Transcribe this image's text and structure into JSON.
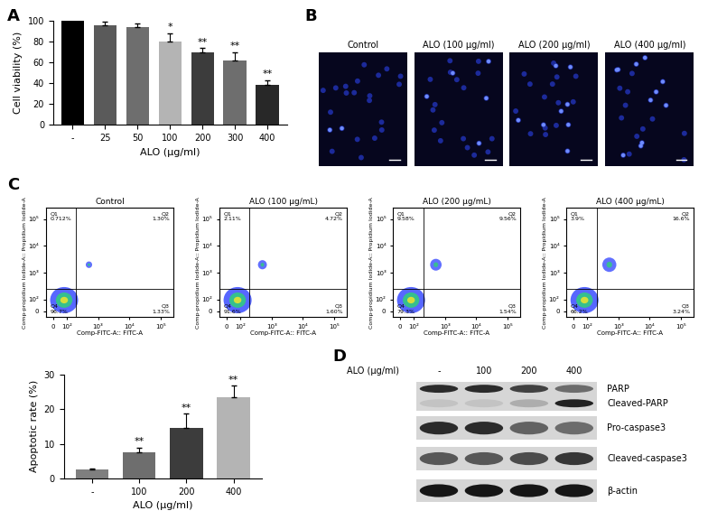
{
  "panel_labels": [
    "A",
    "B",
    "C",
    "D"
  ],
  "chart_data": [
    {
      "type": "bar",
      "y_label": "Cell viability (%)",
      "x_label": "ALO (μg/ml)",
      "categories": [
        "-",
        "25",
        "50",
        "100",
        "200",
        "300",
        "400"
      ],
      "values": [
        100,
        96,
        94,
        80,
        70,
        62,
        38
      ],
      "errors": [
        0,
        3,
        3,
        8,
        4,
        8,
        5
      ],
      "annotations": [
        null,
        null,
        null,
        "*",
        "**",
        "**",
        "**"
      ],
      "colors": [
        "#000000",
        "#5a5a5a",
        "#6e6e6e",
        "#b4b4b4",
        "#3c3c3c",
        "#6e6e6e",
        "#282828"
      ],
      "ylim": [
        0,
        100
      ],
      "yticks": [
        0,
        20,
        40,
        60,
        80,
        100
      ]
    },
    {
      "type": "bar",
      "y_label": "Apoptotic rate (%)",
      "x_label": "ALO (μg/ml)",
      "categories": [
        "-",
        "100",
        "200",
        "400"
      ],
      "values": [
        2.5,
        7.6,
        14.6,
        23.5
      ],
      "errors": [
        0.4,
        1.3,
        4.0,
        3.2
      ],
      "annotations": [
        null,
        "**",
        "**",
        "**"
      ],
      "colors": [
        "#7f7f7f",
        "#6e6e6e",
        "#3c3c3c",
        "#b4b4b4"
      ],
      "ylim": [
        0,
        30
      ],
      "yticks": [
        0,
        10,
        20,
        30
      ]
    }
  ],
  "fluorescence": {
    "titles": [
      "Control",
      "ALO (100 μg/ml)",
      "ALO (200 μg/ml)",
      "ALO (400 μg/ml)"
    ]
  },
  "flow_cytometry": {
    "type": "scatter",
    "log": true,
    "x_label": "Comp-FITC-A:: FITC-A",
    "y_label": "Comp-propidium Iodide-A:: Propidium Iodide-A",
    "xlim": [
      -50,
      262144
    ],
    "ylim": [
      -50,
      262144
    ],
    "xticks": [
      0,
      {
        "value": 100,
        "label": "10²"
      },
      {
        "value": 1000,
        "label": "10³"
      },
      {
        "value": 10000,
        "label": "10⁴"
      },
      {
        "value": 100000,
        "label": "10⁵"
      }
    ],
    "yticks": [
      0,
      {
        "value": 100,
        "label": "10²"
      },
      {
        "value": 1000,
        "label": "10³"
      },
      {
        "value": 10000,
        "label": "10⁴"
      },
      {
        "value": 100000,
        "label": "10⁵"
      }
    ],
    "gates": {
      "x": 200,
      "y": 250
    },
    "plots": [
      {
        "title": "Control",
        "quadrants": [
          {
            "name": "Q1",
            "label": "0.712%"
          },
          {
            "name": "Q2",
            "label": "1.30%"
          },
          {
            "name": "Q3",
            "label": "1.33%"
          },
          {
            "name": "Q4",
            "label": "96.7%"
          }
        ]
      },
      {
        "title": "ALO (100 μg/mL)",
        "quadrants": [
          {
            "name": "Q1",
            "label": "2.11%"
          },
          {
            "name": "Q2",
            "label": "4.72%"
          },
          {
            "name": "Q3",
            "label": "1.60%"
          },
          {
            "name": "Q4",
            "label": "91.6%"
          }
        ]
      },
      {
        "title": "ALO (200 μg/mL)",
        "quadrants": [
          {
            "name": "Q1",
            "label": "9.58%"
          },
          {
            "name": "Q2",
            "label": "9.56%"
          },
          {
            "name": "Q3",
            "label": "1.54%"
          },
          {
            "name": "Q4",
            "label": "79.3%"
          }
        ]
      },
      {
        "title": "ALO (400 μg/mL)",
        "quadrants": [
          {
            "name": "Q1",
            "label": "3.9%"
          },
          {
            "name": "Q2",
            "label": "16.6%"
          },
          {
            "name": "Q3",
            "label": "3.24%"
          },
          {
            "name": "Q4",
            "label": "66.2%"
          }
        ]
      }
    ]
  },
  "western_blot": {
    "header": "ALO (μg/ml)",
    "lanes": [
      "-",
      "100",
      "200",
      "400"
    ],
    "rows": [
      [
        "PARP",
        "Cleaved-PARP"
      ],
      [
        "Pro-caspase3"
      ],
      [
        "Cleaved-caspase3"
      ],
      [
        "β-actin"
      ]
    ]
  }
}
